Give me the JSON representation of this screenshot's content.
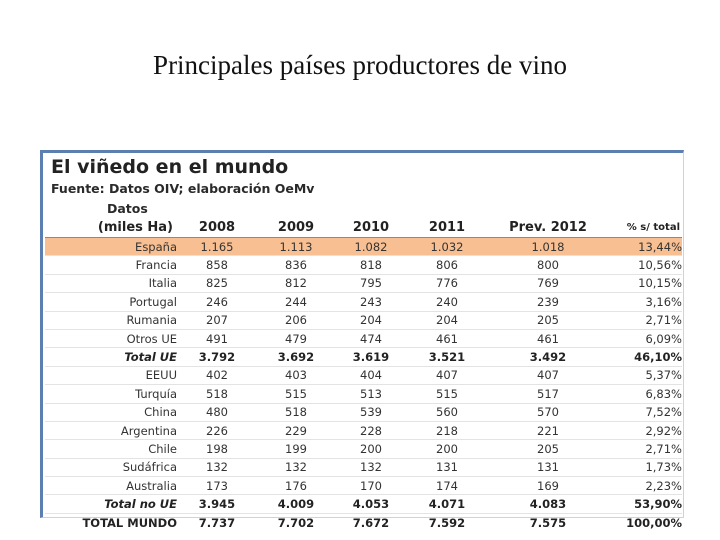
{
  "slide": {
    "title": "Principales países productores de vino"
  },
  "figure": {
    "title": "El viñedo en el mundo",
    "source": "Fuente: Datos OIV; elaboración OeMv",
    "header_label_line1": "Datos",
    "header_label_line2": "(miles Ha)",
    "columns": [
      "2008",
      "2009",
      "2010",
      "2011",
      "Prev. 2012",
      "% s/ total"
    ],
    "rows": [
      {
        "country": "España",
        "values": [
          "1.165",
          "1.113",
          "1.082",
          "1.032",
          "1.018",
          "13,44%"
        ],
        "highlight": true
      },
      {
        "country": "Francia",
        "values": [
          "858",
          "836",
          "818",
          "806",
          "800",
          "10,56%"
        ]
      },
      {
        "country": "Italia",
        "values": [
          "825",
          "812",
          "795",
          "776",
          "769",
          "10,15%"
        ]
      },
      {
        "country": "Portugal",
        "values": [
          "246",
          "244",
          "243",
          "240",
          "239",
          "3,16%"
        ]
      },
      {
        "country": "Rumania",
        "values": [
          "207",
          "206",
          "204",
          "204",
          "205",
          "2,71%"
        ]
      },
      {
        "country": "Otros UE",
        "values": [
          "491",
          "479",
          "474",
          "461",
          "461",
          "6,09%"
        ]
      },
      {
        "country": "Total UE",
        "values": [
          "3.792",
          "3.692",
          "3.619",
          "3.521",
          "3.492",
          "46,10%"
        ],
        "total": true
      },
      {
        "country": "EEUU",
        "values": [
          "402",
          "403",
          "404",
          "407",
          "407",
          "5,37%"
        ]
      },
      {
        "country": "Turquía",
        "values": [
          "518",
          "515",
          "513",
          "515",
          "517",
          "6,83%"
        ]
      },
      {
        "country": "China",
        "values": [
          "480",
          "518",
          "539",
          "560",
          "570",
          "7,52%"
        ]
      },
      {
        "country": "Argentina",
        "values": [
          "226",
          "229",
          "228",
          "218",
          "221",
          "2,92%"
        ]
      },
      {
        "country": "Chile",
        "values": [
          "198",
          "199",
          "200",
          "200",
          "205",
          "2,71%"
        ]
      },
      {
        "country": "Sudáfrica",
        "values": [
          "132",
          "132",
          "132",
          "131",
          "131",
          "1,73%"
        ]
      },
      {
        "country": "Australia",
        "values": [
          "173",
          "176",
          "170",
          "174",
          "169",
          "2,23%"
        ]
      },
      {
        "country": "Total no UE",
        "values": [
          "3.945",
          "4.009",
          "4.053",
          "4.071",
          "4.083",
          "53,90%"
        ],
        "total": true
      },
      {
        "country": "TOTAL MUNDO",
        "values": [
          "7.737",
          "7.702",
          "7.672",
          "7.592",
          "7.575",
          "100,00%"
        ],
        "total": true,
        "grand": true
      }
    ],
    "colors": {
      "highlight": "#f8bf92",
      "frame": "#5b7fb0"
    }
  },
  "chart_data": {
    "type": "table",
    "title": "El viñedo en el mundo",
    "columns": [
      "Datos (miles Ha)",
      "2008",
      "2009",
      "2010",
      "2011",
      "Prev. 2012",
      "% s/ total"
    ],
    "rows": [
      [
        "España",
        1165,
        1113,
        1082,
        1032,
        1018,
        "13,44%"
      ],
      [
        "Francia",
        858,
        836,
        818,
        806,
        800,
        "10,56%"
      ],
      [
        "Italia",
        825,
        812,
        795,
        776,
        769,
        "10,15%"
      ],
      [
        "Portugal",
        246,
        244,
        243,
        240,
        239,
        "3,16%"
      ],
      [
        "Rumania",
        207,
        206,
        204,
        204,
        205,
        "2,71%"
      ],
      [
        "Otros UE",
        491,
        479,
        474,
        461,
        461,
        "6,09%"
      ],
      [
        "Total UE",
        3792,
        3692,
        3619,
        3521,
        3492,
        "46,10%"
      ],
      [
        "EEUU",
        402,
        403,
        404,
        407,
        407,
        "5,37%"
      ],
      [
        "Turquía",
        518,
        515,
        513,
        515,
        517,
        "6,83%"
      ],
      [
        "China",
        480,
        518,
        539,
        560,
        570,
        "7,52%"
      ],
      [
        "Argentina",
        226,
        229,
        228,
        218,
        221,
        "2,92%"
      ],
      [
        "Chile",
        198,
        199,
        200,
        200,
        205,
        "2,71%"
      ],
      [
        "Sudáfrica",
        132,
        132,
        132,
        131,
        131,
        "1,73%"
      ],
      [
        "Australia",
        173,
        176,
        170,
        174,
        169,
        "2,23%"
      ],
      [
        "Total no UE",
        3945,
        4009,
        4053,
        4071,
        4083,
        "53,90%"
      ],
      [
        "TOTAL MUNDO",
        7737,
        7702,
        7672,
        7592,
        7575,
        "100,00%"
      ]
    ]
  }
}
